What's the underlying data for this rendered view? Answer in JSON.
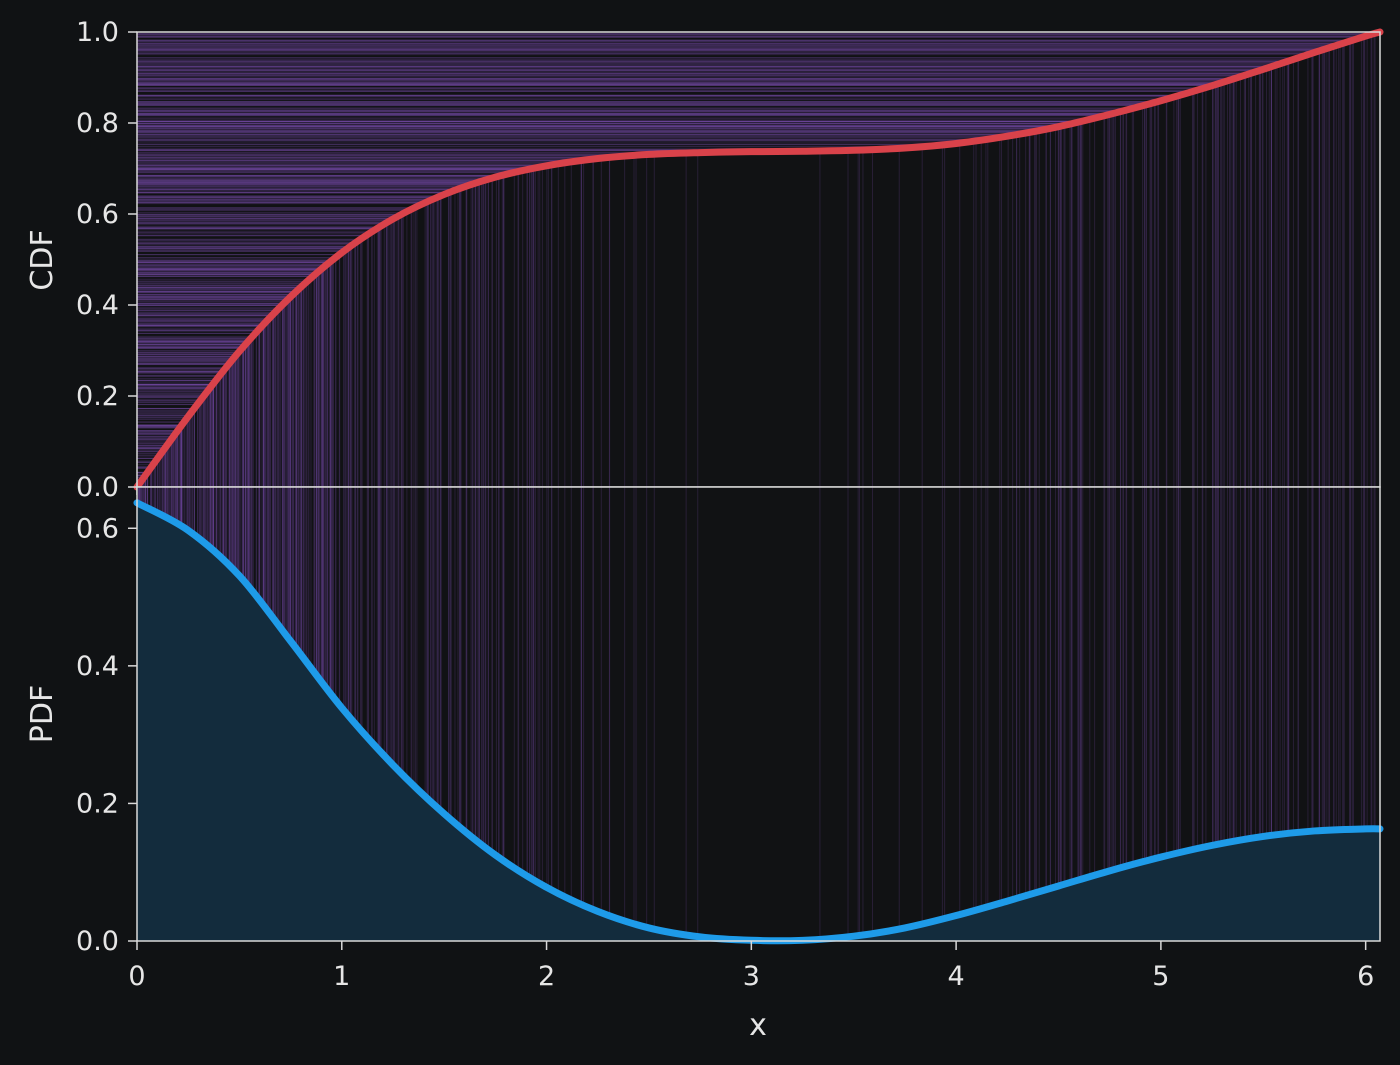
{
  "chart_data": [
    {
      "type": "line",
      "panel": "top",
      "title": "",
      "xlabel": "",
      "ylabel": "CDF",
      "xlim": [
        0,
        6.07
      ],
      "ylim": [
        0,
        1.0
      ],
      "yticks": [
        "0.0",
        "0.2",
        "0.4",
        "0.6",
        "0.8",
        "1.0"
      ],
      "grid": false,
      "series": [
        {
          "x": [
            0,
            0.25,
            0.5,
            0.75,
            1.0,
            1.25,
            1.5,
            1.75,
            2.0,
            2.25,
            2.5,
            2.75,
            3.0,
            3.25,
            3.5,
            3.75,
            4.0,
            4.25,
            4.5,
            4.75,
            5.0,
            5.25,
            5.5,
            5.75,
            6.0,
            6.07
          ],
          "values": [
            0.0,
            0.155,
            0.298,
            0.418,
            0.515,
            0.589,
            0.643,
            0.681,
            0.706,
            0.722,
            0.731,
            0.735,
            0.737,
            0.738,
            0.74,
            0.745,
            0.755,
            0.771,
            0.792,
            0.819,
            0.849,
            0.882,
            0.918,
            0.955,
            0.991,
            1.0
          ]
        }
      ],
      "colors": {
        "line": "#d9424a",
        "rug": "#7d4fb3"
      }
    },
    {
      "type": "area",
      "panel": "bottom",
      "title": "",
      "xlabel": "x",
      "ylabel": "PDF",
      "xlim": [
        0,
        6.07
      ],
      "ylim": [
        0,
        0.66
      ],
      "xticks": [
        "0",
        "1",
        "2",
        "3",
        "4",
        "5",
        "6"
      ],
      "yticks": [
        "0.0",
        "0.2",
        "0.4",
        "0.6"
      ],
      "grid": false,
      "series": [
        {
          "x": [
            0,
            0.25,
            0.5,
            0.75,
            1.0,
            1.25,
            1.5,
            1.75,
            2.0,
            2.25,
            2.5,
            2.75,
            3.0,
            3.25,
            3.5,
            3.75,
            4.0,
            4.25,
            4.5,
            4.75,
            5.0,
            5.25,
            5.5,
            5.75,
            6.0,
            6.07
          ],
          "values": [
            0.637,
            0.597,
            0.531,
            0.436,
            0.339,
            0.256,
            0.185,
            0.125,
            0.078,
            0.043,
            0.019,
            0.006,
            0.001,
            0.001,
            0.007,
            0.019,
            0.037,
            0.058,
            0.08,
            0.102,
            0.122,
            0.139,
            0.152,
            0.16,
            0.163,
            0.163
          ]
        }
      ],
      "colors": {
        "line": "#1e9be9",
        "fill": "#132c3d",
        "rug": "#7d4fb3"
      }
    }
  ]
}
